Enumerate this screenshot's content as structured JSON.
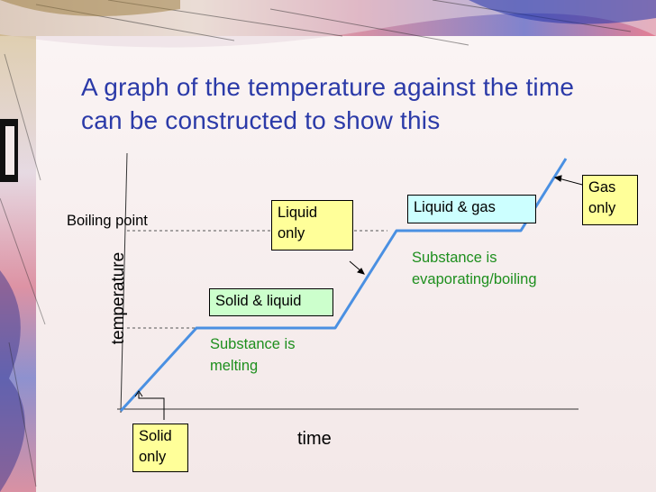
{
  "slide": {
    "title": "A graph of the temperature against the time can be constructed to show this"
  },
  "axes": {
    "x_label": "time",
    "y_label": "temperature",
    "boiling_point_label": "Boiling point"
  },
  "boxes": {
    "solid_only": "Solid only",
    "solid_liquid": "Solid & liquid",
    "liquid_only": "Liquid only",
    "liquid_gas": "Liquid & gas",
    "gas_only": "Gas only"
  },
  "annotations": {
    "melting": "Substance is melting",
    "boiling": "Substance is evaporating/boiling"
  },
  "colors": {
    "title": "#2b3aa8",
    "curve": "#4a90e2",
    "green_text": "#1e8f1e",
    "yellow_box": "#ffff99",
    "green_box": "#ccffcc",
    "blue_box": "#ccffff"
  }
}
